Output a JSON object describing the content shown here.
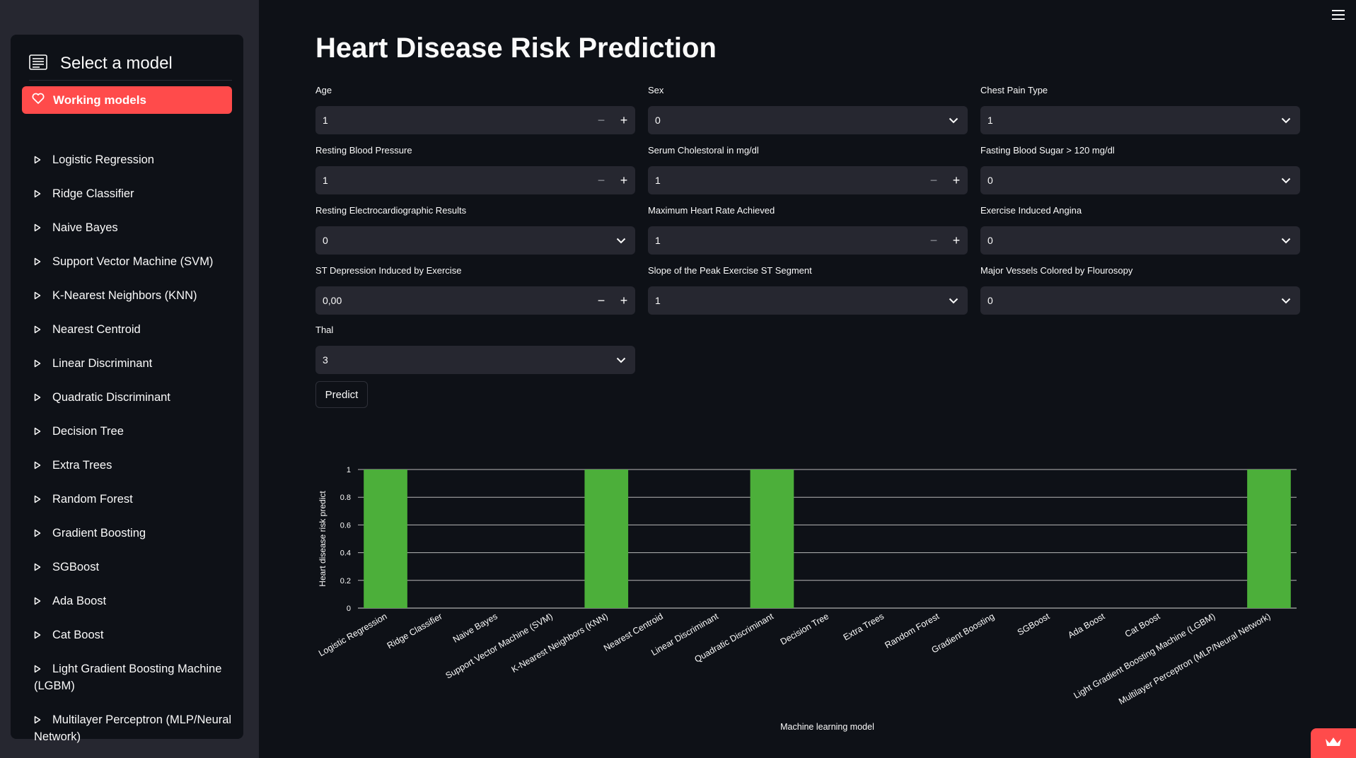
{
  "sidebar": {
    "title": "Select a model",
    "active_item": "Working models",
    "items": [
      "Logistic Regression",
      "Ridge Classifier",
      "Naive Bayes",
      "Support Vector Machine (SVM)",
      "K-Nearest Neighbors (KNN)",
      "Nearest Centroid",
      "Linear Discriminant",
      "Quadratic Discriminant",
      "Decision Tree",
      "Extra Trees",
      "Random Forest",
      "Gradient Boosting",
      "SGBoost",
      "Ada Boost",
      "Cat Boost",
      "Light Gradient Boosting Machine (LGBM)",
      "Multilayer Perceptron (MLP/Neural Network)"
    ],
    "accent_color": "#ff4b4b"
  },
  "main": {
    "title": "Heart Disease Risk Prediction",
    "fields": {
      "age": {
        "label": "Age",
        "value": "1",
        "type": "number"
      },
      "sex": {
        "label": "Sex",
        "value": "0",
        "type": "select"
      },
      "chest_pain": {
        "label": "Chest Pain Type",
        "value": "1",
        "type": "select"
      },
      "resting_bp": {
        "label": "Resting Blood Pressure",
        "value": "1",
        "type": "number"
      },
      "cholesterol": {
        "label": "Serum Cholestoral in mg/dl",
        "value": "1",
        "type": "number"
      },
      "fasting_sugar": {
        "label": "Fasting Blood Sugar > 120 mg/dl",
        "value": "0",
        "type": "select"
      },
      "rest_ecg": {
        "label": "Resting Electrocardiographic Results",
        "value": "0",
        "type": "select"
      },
      "max_hr": {
        "label": "Maximum Heart Rate Achieved",
        "value": "1",
        "type": "number"
      },
      "angina": {
        "label": "Exercise Induced Angina",
        "value": "0",
        "type": "select"
      },
      "st_depression": {
        "label": "ST Depression Induced by Exercise",
        "value": "0,00",
        "type": "number"
      },
      "slope": {
        "label": "Slope of the Peak Exercise ST Segment",
        "value": "1",
        "type": "select"
      },
      "vessels": {
        "label": "Major Vessels Colored by Flourosopy",
        "value": "0",
        "type": "select"
      },
      "thal": {
        "label": "Thal",
        "value": "3",
        "type": "select"
      }
    },
    "predict_label": "Predict"
  },
  "chart_data": {
    "type": "bar",
    "categories": [
      "Logistic Regression",
      "Ridge Classifier",
      "Naive Bayes",
      "Support Vector Machine (SVM)",
      "K-Nearest Neighbors (KNN)",
      "Nearest Centroid",
      "Linear Discriminant",
      "Quadratic Discriminant",
      "Decision Tree",
      "Extra Trees",
      "Random Forest",
      "Gradient Boosting",
      "SGBoost",
      "Ada Boost",
      "Cat Boost",
      "Light Gradient Boosting Machine (LGBM)",
      "Multilayer Perceptron (MLP/Neural Network)"
    ],
    "values": [
      1,
      0,
      0,
      0,
      1,
      0,
      0,
      1,
      0,
      0,
      0,
      0,
      0,
      0,
      0,
      0,
      1
    ],
    "xlabel": "Machine learning model",
    "ylabel": "Heart disease risk predict",
    "ylim": [
      0,
      1
    ],
    "yticks": [
      "0",
      "0.2",
      "0.4",
      "0.6",
      "0.8",
      "1"
    ],
    "grid": true,
    "bar_color": "#4caf3a"
  }
}
